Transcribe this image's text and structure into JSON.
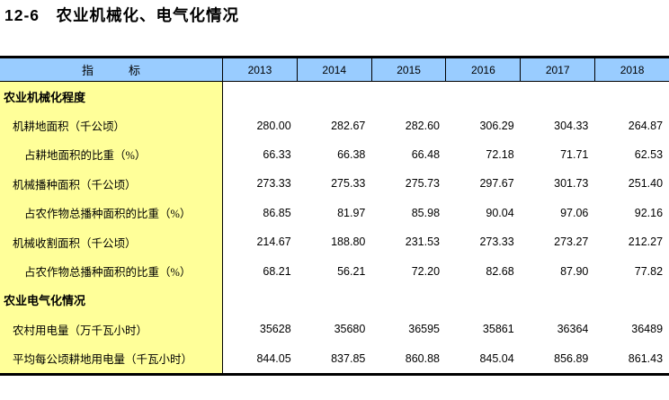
{
  "title": "12-6　农业机械化、电气化情况",
  "colors": {
    "header_bg": "#99CCFF",
    "indicator_bg": "#FFFF99",
    "rule": "#000000",
    "text": "#000000"
  },
  "table": {
    "indicator_header": "指　　　标",
    "years": [
      "2013",
      "2014",
      "2015",
      "2016",
      "2017",
      "2018"
    ],
    "rows": [
      {
        "label": "农业机械化程度",
        "type": "section",
        "values": [
          "",
          "",
          "",
          "",
          "",
          ""
        ]
      },
      {
        "label": "机耕地面积（千公顷）",
        "type": "item",
        "values": [
          "280.00",
          "282.67",
          "282.60",
          "306.29",
          "304.33",
          "264.87"
        ]
      },
      {
        "label": "占耕地面积的比重（%）",
        "type": "subitem",
        "values": [
          "66.33",
          "66.38",
          "66.48",
          "72.18",
          "71.71",
          "62.53"
        ]
      },
      {
        "label": "机械播种面积（千公顷）",
        "type": "item",
        "values": [
          "273.33",
          "275.33",
          "275.73",
          "297.67",
          "301.73",
          "251.40"
        ]
      },
      {
        "label": "占农作物总播种面积的比重（%）",
        "type": "subitem",
        "values": [
          "86.85",
          "81.97",
          "85.98",
          "90.04",
          "97.06",
          "92.16"
        ]
      },
      {
        "label": "机械收割面积（千公顷）",
        "type": "item",
        "values": [
          "214.67",
          "188.80",
          "231.53",
          "273.33",
          "273.27",
          "212.27"
        ]
      },
      {
        "label": "占农作物总播种面积的比重（%）",
        "type": "subitem",
        "values": [
          "68.21",
          "56.21",
          "72.20",
          "82.68",
          "87.90",
          "77.82"
        ]
      },
      {
        "label": "农业电气化情况",
        "type": "section",
        "values": [
          "",
          "",
          "",
          "",
          "",
          ""
        ]
      },
      {
        "label": "农村用电量（万千瓦小时）",
        "type": "item",
        "values": [
          "35628",
          "35680",
          "36595",
          "35861",
          "36364",
          "36489"
        ]
      },
      {
        "label": "平均每公顷耕地用电量（千瓦小时）",
        "type": "item",
        "values": [
          "844.05",
          "837.85",
          "860.88",
          "845.04",
          "856.89",
          "861.43"
        ]
      }
    ]
  }
}
